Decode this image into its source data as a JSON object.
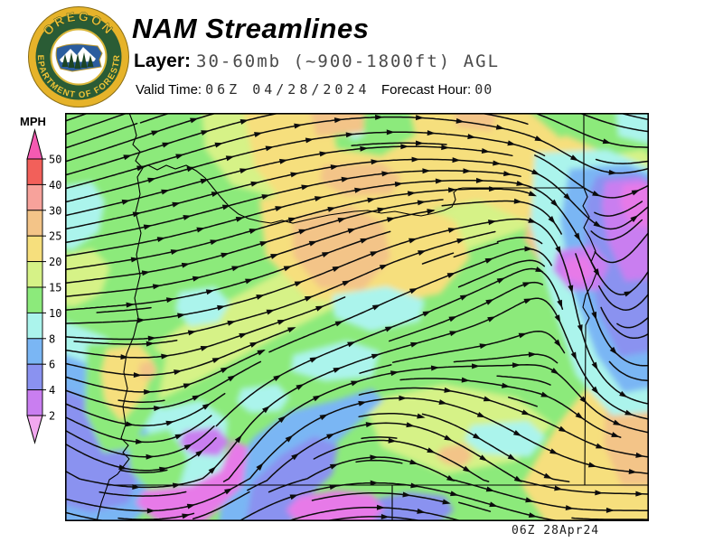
{
  "header": {
    "title": "NAM Streamlines",
    "layer_label": "Layer:",
    "layer_value": "30-60mb (~900-1800ft) AGL",
    "valid_time_label": "Valid Time:",
    "valid_time_value": "06Z 04/28/2024",
    "forecast_hour_label": "Forecast Hour:",
    "forecast_hour_value": "00"
  },
  "logo": {
    "top_text": "OREGON",
    "arc_text": "DEPARTMENT OF FORESTRY",
    "ring_color": "#2a5c35",
    "gold_color": "#e6b32a",
    "text_color": "#f0c437"
  },
  "legend": {
    "units_label": "MPH",
    "tick_values": [
      50,
      40,
      30,
      25,
      20,
      15,
      10,
      8,
      6,
      4,
      2
    ],
    "segment_colors_top_to_bottom": [
      "#f2605a",
      "#f7a29b",
      "#f3c488",
      "#f6df7d",
      "#d6f287",
      "#8cea7b",
      "#abf4ec",
      "#7ab6f4",
      "#8a92f0",
      "#c97ef0"
    ],
    "above_max_color": "#f55ab2",
    "below_min_color": "#f2a8ef"
  },
  "map": {
    "timestamp": "06Z 28Apr24",
    "base_color": "#8cea7b",
    "stream_color": "#0c0c0c",
    "border_color": "#000000",
    "patch_colors": {
      "green": "#8cea7b",
      "pale_green": "#d6f287",
      "yellow": "#f6df7d",
      "orange": "#f3c488",
      "cyan": "#abf4ec",
      "blue": "#7ab6f4",
      "periwinkle": "#8a92f0",
      "orchid": "#c97ef0",
      "magenta": "#e77ae8"
    }
  }
}
